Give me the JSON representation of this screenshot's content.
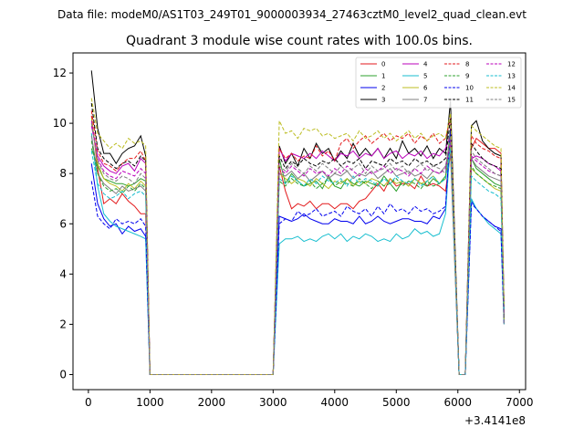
{
  "chart_data": {
    "type": "line",
    "suptitle": "Data file: modeM0/AS1T03_249T01_9000003934_27463cztM0_level2_quad_clean.evt",
    "title": "Quadrant 3 module wise count rates with 100.0s bins.",
    "xlabel": "",
    "ylabel": "",
    "x_offset_label": "+3.4141e8",
    "xlim": [
      -250,
      7100
    ],
    "ylim": [
      -0.6,
      12.8
    ],
    "xticks": [
      0,
      1000,
      2000,
      3000,
      4000,
      5000,
      6000,
      7000
    ],
    "yticks": [
      0,
      2,
      4,
      6,
      8,
      10,
      12
    ],
    "grid": false,
    "legend_position": "top-right",
    "segments": [
      {
        "x": [
          50,
          150,
          250,
          350,
          450,
          550,
          650,
          750,
          850,
          930
        ],
        "idx": [
          0,
          1,
          2,
          3,
          4,
          5,
          6,
          7,
          8,
          9
        ]
      },
      {
        "x": [
          3100,
          3200,
          3300,
          3400,
          3500,
          3600,
          3700,
          3800,
          3900,
          4000,
          4100,
          4200,
          4300,
          4400,
          4500,
          4600,
          4700,
          4800,
          4900,
          5000,
          5100,
          5200,
          5300,
          5400,
          5500,
          5600,
          5700,
          5800,
          5880
        ],
        "idx": [
          0,
          1,
          2,
          3,
          4,
          5,
          6,
          7,
          8,
          9,
          10,
          11,
          12,
          13,
          14,
          15,
          16,
          17,
          18,
          19,
          20,
          21,
          22,
          23,
          24,
          25,
          26,
          27,
          28
        ]
      },
      {
        "x": [
          6220,
          6300,
          6400,
          6500,
          6600,
          6700
        ],
        "idx": [
          0,
          1,
          2,
          3,
          4,
          5
        ]
      }
    ],
    "series": [
      {
        "name": "0",
        "color": "#e31a1c",
        "dash": false,
        "seg": [
          [
            10.3,
            8.2,
            6.8,
            7.0,
            6.8,
            7.2,
            6.9,
            6.7,
            6.4,
            6.4
          ],
          [
            8.3,
            7.3,
            6.6,
            6.8,
            6.7,
            6.9,
            6.6,
            6.8,
            6.8,
            6.6,
            6.8,
            6.8,
            6.6,
            6.9,
            7.0,
            7.3,
            7.6,
            7.3,
            7.8,
            7.5,
            7.6,
            7.6,
            7.4,
            7.9,
            7.5,
            7.6,
            7.5,
            7.3,
            8.8
          ],
          [
            9.0,
            9.4,
            9.2,
            9.0,
            9.0,
            8.8
          ]
        ]
      },
      {
        "name": "1",
        "color": "#2ca02c",
        "dash": false,
        "seg": [
          [
            9.0,
            8.3,
            7.8,
            7.7,
            7.6,
            7.6,
            7.5,
            7.6,
            7.8,
            7.7
          ],
          [
            8.6,
            7.6,
            8.0,
            7.7,
            7.5,
            7.6,
            7.7,
            7.4,
            7.9,
            7.5,
            7.4,
            7.8,
            7.6,
            7.5,
            7.7,
            7.6,
            7.5,
            7.9,
            7.6,
            7.3,
            7.7,
            7.5,
            7.8,
            7.6,
            7.5,
            7.8,
            7.6,
            7.9,
            9.8
          ],
          [
            8.6,
            8.2,
            8.0,
            7.8,
            7.6,
            7.5
          ]
        ]
      },
      {
        "name": "2",
        "color": "#0000ee",
        "dash": false,
        "seg": [
          [
            8.4,
            6.8,
            6.2,
            5.9,
            6.0,
            5.6,
            5.9,
            5.7,
            5.8,
            5.5
          ],
          [
            6.3,
            6.2,
            6.1,
            6.2,
            6.4,
            6.2,
            6.1,
            6.0,
            6.0,
            6.2,
            6.1,
            6.1,
            6.0,
            6.3,
            6.0,
            6.1,
            6.3,
            6.1,
            6.0,
            6.1,
            6.2,
            6.2,
            6.1,
            6.1,
            6.0,
            6.3,
            6.2,
            6.6,
            9.8
          ],
          [
            6.9,
            6.6,
            6.3,
            6.1,
            5.9,
            5.8
          ]
        ]
      },
      {
        "name": "3",
        "color": "#000000",
        "dash": false,
        "seg": [
          [
            12.1,
            9.8,
            8.8,
            8.8,
            8.4,
            8.8,
            9.0,
            9.1,
            9.5,
            8.7
          ],
          [
            9.1,
            8.4,
            8.8,
            8.3,
            9.0,
            8.6,
            9.2,
            8.8,
            9.0,
            8.5,
            8.9,
            8.6,
            9.2,
            8.7,
            9.0,
            8.7,
            9.0,
            8.6,
            9.0,
            8.6,
            9.3,
            8.8,
            9.0,
            8.7,
            9.1,
            8.6,
            9.0,
            8.8,
            10.9
          ],
          [
            9.9,
            10.1,
            9.3,
            9.0,
            8.8,
            8.7
          ]
        ]
      },
      {
        "name": "4",
        "color": "#bb00bb",
        "dash": false,
        "seg": [
          [
            9.9,
            8.7,
            8.3,
            8.1,
            8.0,
            8.3,
            8.4,
            8.1,
            8.6,
            8.4
          ],
          [
            9.0,
            8.5,
            8.8,
            8.7,
            8.6,
            8.8,
            8.6,
            8.9,
            8.7,
            8.5,
            8.8,
            8.7,
            8.9,
            8.6,
            8.8,
            8.7,
            9.0,
            8.6,
            8.8,
            8.9,
            8.6,
            8.8,
            8.7,
            8.9,
            8.6,
            8.8,
            8.7,
            9.0,
            9.5
          ],
          [
            8.6,
            8.7,
            8.6,
            8.4,
            8.3,
            8.1
          ]
        ]
      },
      {
        "name": "5",
        "color": "#17becf",
        "dash": false,
        "seg": [
          [
            9.6,
            7.5,
            6.4,
            6.1,
            5.9,
            5.8,
            5.7,
            5.6,
            5.5,
            5.4
          ],
          [
            5.2,
            5.4,
            5.4,
            5.5,
            5.3,
            5.4,
            5.3,
            5.5,
            5.6,
            5.4,
            5.6,
            5.3,
            5.5,
            5.4,
            5.6,
            5.5,
            5.3,
            5.4,
            5.3,
            5.6,
            5.4,
            5.5,
            5.8,
            5.6,
            5.7,
            5.5,
            5.6,
            6.4,
            9.3
          ],
          [
            7.0,
            6.6,
            6.3,
            6.0,
            5.8,
            5.6
          ]
        ]
      },
      {
        "name": "6",
        "color": "#bcbd22",
        "dash": false,
        "seg": [
          [
            10.2,
            8.4,
            7.8,
            7.6,
            7.5,
            7.3,
            7.6,
            7.4,
            7.7,
            7.5
          ],
          [
            8.0,
            7.8,
            7.6,
            7.8,
            7.7,
            7.5,
            7.8,
            7.6,
            7.4,
            7.7,
            7.6,
            7.8,
            7.5,
            7.7,
            7.6,
            7.8,
            7.7,
            7.5,
            7.8,
            7.6,
            7.7,
            7.5,
            7.8,
            7.6,
            7.7,
            7.9,
            7.6,
            7.8,
            9.1
          ],
          [
            8.2,
            8.0,
            7.8,
            7.6,
            7.4,
            7.3
          ]
        ]
      },
      {
        "name": "7",
        "color": "#7f7f7f",
        "dash": false,
        "seg": [
          [
            9.5,
            8.0,
            7.6,
            7.4,
            7.2,
            7.5,
            7.3,
            7.4,
            7.5,
            7.3
          ],
          [
            8.0,
            7.9,
            8.1,
            7.8,
            8.0,
            7.7,
            7.9,
            8.1,
            7.8,
            8.0,
            7.9,
            8.1,
            7.8,
            8.0,
            7.9,
            8.1,
            7.8,
            8.0,
            8.2,
            7.9,
            8.0,
            8.1,
            7.9,
            8.0,
            7.8,
            8.1,
            8.0,
            8.3,
            9.4
          ],
          [
            8.6,
            8.3,
            8.1,
            7.9,
            7.8,
            7.7
          ]
        ]
      },
      {
        "name": "8",
        "color": "#e31a1c",
        "dash": true,
        "seg": [
          [
            10.5,
            8.9,
            8.4,
            8.3,
            8.1,
            8.4,
            8.6,
            8.6,
            8.9,
            8.5
          ],
          [
            9.0,
            8.6,
            8.8,
            8.5,
            8.7,
            8.6,
            9.1,
            8.7,
            8.9,
            8.5,
            9.2,
            9.4,
            9.0,
            9.3,
            9.5,
            9.2,
            9.4,
            9.6,
            9.3,
            9.5,
            9.4,
            9.6,
            9.2,
            9.5,
            9.3,
            9.6,
            9.2,
            9.4,
            10.2
          ],
          [
            9.5,
            9.2,
            9.0,
            8.9,
            8.7,
            8.6
          ]
        ]
      },
      {
        "name": "9",
        "color": "#2ca02c",
        "dash": true,
        "seg": [
          [
            9.3,
            8.0,
            7.5,
            7.3,
            7.4,
            7.2,
            7.5,
            7.3,
            7.6,
            7.4
          ],
          [
            7.7,
            7.5,
            7.8,
            7.6,
            7.5,
            7.7,
            7.4,
            7.6,
            7.8,
            7.5,
            7.7,
            7.6,
            7.5,
            7.8,
            7.6,
            7.4,
            7.7,
            7.5,
            7.6,
            7.8,
            7.5,
            7.7,
            7.6,
            7.4,
            7.7,
            7.5,
            7.6,
            7.8,
            9.6
          ],
          [
            8.3,
            8.0,
            7.8,
            7.6,
            7.5,
            7.4
          ]
        ]
      },
      {
        "name": "10",
        "color": "#0000ee",
        "dash": true,
        "seg": [
          [
            7.7,
            6.3,
            6.0,
            5.8,
            6.2,
            6.0,
            6.1,
            6.0,
            6.2,
            5.9
          ],
          [
            6.0,
            6.2,
            6.1,
            6.5,
            6.3,
            6.4,
            6.6,
            6.3,
            6.4,
            6.5,
            6.3,
            6.7,
            6.5,
            6.4,
            6.6,
            6.3,
            6.7,
            6.4,
            6.8,
            6.5,
            6.6,
            6.4,
            6.7,
            6.5,
            6.6,
            6.4,
            6.5,
            6.7,
            9.7
          ],
          [
            6.8,
            6.6,
            6.3,
            6.1,
            5.9,
            5.7
          ]
        ]
      },
      {
        "name": "11",
        "color": "#000000",
        "dash": true,
        "seg": [
          [
            10.8,
            9.0,
            8.6,
            8.4,
            8.2,
            8.4,
            8.5,
            8.3,
            8.7,
            8.5
          ],
          [
            8.7,
            8.2,
            8.5,
            8.3,
            8.6,
            8.4,
            8.3,
            8.5,
            8.4,
            8.6,
            8.3,
            8.5,
            8.4,
            8.6,
            8.2,
            8.5,
            8.4,
            8.3,
            8.6,
            8.4,
            8.5,
            8.3,
            8.6,
            8.4,
            8.5,
            8.3,
            8.4,
            8.6,
            10.2
          ],
          [
            9.2,
            8.9,
            8.6,
            8.4,
            8.3,
            8.2
          ]
        ]
      },
      {
        "name": "12",
        "color": "#bb00bb",
        "dash": true,
        "seg": [
          [
            10.1,
            8.6,
            8.1,
            7.9,
            7.8,
            8.1,
            8.0,
            7.9,
            8.2,
            8.0
          ],
          [
            8.2,
            8.0,
            8.3,
            8.1,
            7.9,
            8.2,
            8.0,
            8.1,
            7.9,
            8.2,
            8.0,
            8.3,
            8.1,
            7.9,
            8.2,
            8.0,
            8.1,
            8.3,
            8.0,
            8.2,
            8.1,
            7.9,
            8.2,
            8.0,
            8.3,
            8.1,
            8.0,
            8.2,
            9.3
          ],
          [
            8.7,
            8.5,
            8.3,
            8.1,
            8.0,
            7.9
          ]
        ]
      },
      {
        "name": "13",
        "color": "#17becf",
        "dash": true,
        "seg": [
          [
            8.9,
            7.6,
            7.2,
            7.0,
            7.1,
            7.3,
            7.0,
            7.2,
            7.3,
            7.1
          ],
          [
            7.8,
            7.6,
            7.9,
            7.7,
            7.5,
            7.8,
            7.6,
            7.9,
            7.7,
            7.6,
            7.8,
            7.5,
            7.9,
            7.6,
            7.8,
            7.7,
            7.5,
            7.8,
            7.6,
            7.9,
            7.7,
            7.6,
            7.8,
            7.5,
            7.7,
            7.9,
            7.6,
            7.8,
            9.0
          ],
          [
            7.9,
            7.7,
            7.5,
            7.3,
            7.2,
            7.0
          ]
        ]
      },
      {
        "name": "14",
        "color": "#bcbd22",
        "dash": true,
        "seg": [
          [
            11.0,
            9.6,
            9.3,
            9.0,
            9.2,
            9.0,
            9.4,
            9.2,
            9.3,
            9.1
          ],
          [
            10.1,
            9.6,
            9.7,
            9.4,
            9.8,
            9.7,
            9.8,
            9.5,
            9.6,
            9.4,
            9.5,
            9.6,
            9.3,
            9.7,
            9.4,
            9.5,
            9.7,
            9.4,
            9.6,
            9.3,
            9.5,
            9.7,
            9.4,
            9.6,
            9.3,
            9.5,
            9.6,
            9.4,
            10.4
          ],
          [
            9.9,
            9.7,
            9.5,
            9.3,
            9.1,
            9.0
          ]
        ]
      },
      {
        "name": "15",
        "color": "#7f7f7f",
        "dash": true,
        "seg": [
          [
            10.0,
            8.5,
            8.0,
            7.8,
            7.7,
            7.9,
            7.8,
            7.6,
            8.0,
            7.8
          ],
          [
            8.3,
            8.1,
            8.4,
            8.2,
            8.0,
            8.3,
            8.1,
            8.4,
            8.2,
            8.0,
            8.3,
            8.1,
            8.2,
            8.4,
            8.0,
            8.3,
            8.1,
            8.2,
            8.4,
            8.1,
            8.3,
            8.0,
            8.2,
            8.4,
            8.1,
            8.3,
            8.2,
            8.0,
            9.5
          ],
          [
            8.9,
            8.6,
            8.4,
            8.2,
            8.0,
            7.9
          ]
        ]
      }
    ]
  }
}
